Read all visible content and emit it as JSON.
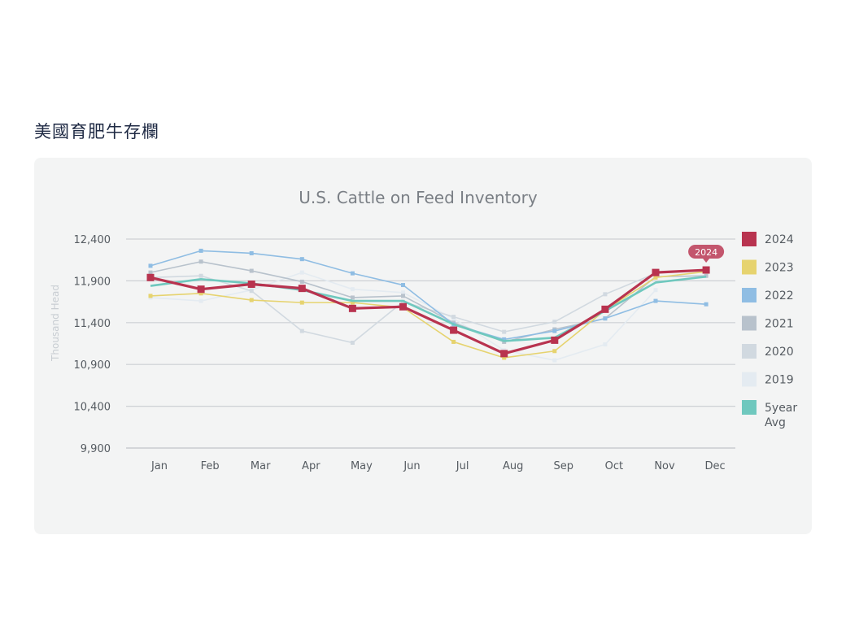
{
  "page": {
    "heading": "美國育肥牛存欄"
  },
  "colors": {
    "2024": "#b8334f",
    "2023": "#e6d36f",
    "2022": "#8fbde3",
    "2021": "#b8c2cc",
    "2020": "#d1d9e0",
    "2019": "#e4ebf1",
    "5year Avg": "#6fc8be"
  },
  "chart_data": {
    "type": "line",
    "title": "U.S. Cattle on Feed Inventory",
    "ylabel": "Thousand Head",
    "xlabel": "",
    "ylim": [
      9900,
      12400
    ],
    "yticks": [
      9900,
      10400,
      10900,
      11400,
      11900,
      12400
    ],
    "ytick_labels": [
      "9,900",
      "10,400",
      "10,900",
      "11,400",
      "11,900",
      "12,400"
    ],
    "categories": [
      "Jan",
      "Feb",
      "Mar",
      "Apr",
      "May",
      "Jun",
      "Jul",
      "Aug",
      "Sep",
      "Oct",
      "Nov",
      "Dec"
    ],
    "grid": true,
    "legend": "right",
    "series": [
      {
        "name": "2019",
        "values": [
          11700,
          11660,
          11790,
          12000,
          11800,
          11760,
          11450,
          11070,
          10950,
          11140,
          11790,
          null
        ]
      },
      {
        "name": "2020",
        "values": [
          11940,
          11960,
          11780,
          11300,
          11160,
          11650,
          11470,
          11290,
          11410,
          11740,
          11990,
          null
        ]
      },
      {
        "name": "2021",
        "values": [
          12000,
          12130,
          12020,
          11890,
          11700,
          11720,
          11400,
          11170,
          11320,
          11450,
          11950,
          11960
        ]
      },
      {
        "name": "2022",
        "values": [
          12080,
          12260,
          12230,
          12160,
          11990,
          11850,
          11380,
          11200,
          11300,
          11450,
          11660,
          11620
        ]
      },
      {
        "name": "2023",
        "values": [
          11720,
          11750,
          11670,
          11640,
          11640,
          11580,
          11170,
          10980,
          11060,
          11550,
          11940,
          12010
        ]
      },
      {
        "name": "5year Avg",
        "values": [
          11840,
          11920,
          11870,
          11790,
          11660,
          11660,
          11380,
          11180,
          11220,
          11540,
          11880,
          11950
        ]
      },
      {
        "name": "2024",
        "values": [
          11940,
          11800,
          11860,
          11810,
          11570,
          11590,
          11310,
          11030,
          11190,
          11560,
          12000,
          12030
        ]
      }
    ],
    "annotations": [
      {
        "series": "2024",
        "index": 11,
        "label": "2024"
      }
    ]
  }
}
